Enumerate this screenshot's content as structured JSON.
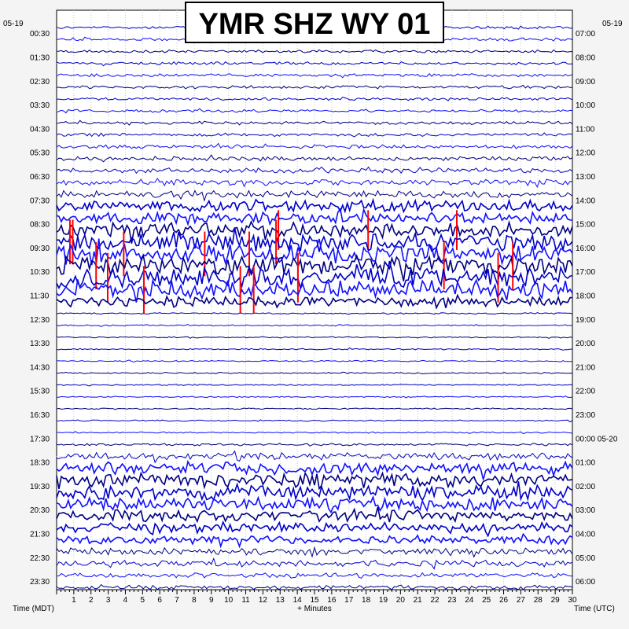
{
  "chart_data": {
    "type": "line",
    "title": "YMR SHZ WY 01",
    "date_left": "05-19",
    "date_right": "05-19",
    "xlabel": "+ Minutes",
    "left_axis_label": "Time (MDT)",
    "right_axis_label": "Time (UTC)",
    "x_ticks": [
      "1",
      "2",
      "3",
      "4",
      "5",
      "6",
      "7",
      "8",
      "9",
      "10",
      "11",
      "12",
      "13",
      "14",
      "15",
      "16",
      "17",
      "18",
      "19",
      "20",
      "21",
      "22",
      "23",
      "24",
      "25",
      "26",
      "27",
      "28",
      "29",
      "30"
    ],
    "xlim": [
      0,
      30
    ],
    "rows_per_hour": 2,
    "minutes_per_row": 30,
    "left_times": [
      "00:30",
      "01:30",
      "02:30",
      "03:30",
      "04:30",
      "05:30",
      "06:30",
      "07:30",
      "08:30",
      "09:30",
      "10:30",
      "11:30",
      "12:30",
      "13:30",
      "14:30",
      "15:30",
      "16:30",
      "17:30",
      "18:30",
      "19:30",
      "20:30",
      "21:30",
      "22:30",
      "23:30"
    ],
    "right_times": [
      "07:00",
      "08:00",
      "09:00",
      "10:00",
      "11:00",
      "12:00",
      "13:00",
      "14:00",
      "15:00",
      "16:00",
      "17:00",
      "18:00",
      "19:00",
      "20:00",
      "21:00",
      "22:00",
      "23:00",
      "00:00 05-20",
      "01:00",
      "02:00",
      "03:00",
      "04:00",
      "05:00",
      "06:00"
    ],
    "trace_colors": [
      "#0000c8",
      "#1010ff",
      "#000080"
    ],
    "clip_color": "#ff0000",
    "grid": true,
    "activity": [
      0.08,
      0.1,
      0.08,
      0.08,
      0.09,
      0.09,
      0.08,
      0.08,
      0.09,
      0.1,
      0.12,
      0.15,
      0.18,
      0.25,
      0.3,
      0.5,
      0.55,
      0.75,
      0.85,
      0.85,
      0.9,
      0.95,
      0.9,
      0.45,
      0,
      0,
      0,
      0,
      0,
      0,
      0,
      0,
      0,
      0,
      0,
      0.05,
      0.3,
      0.6,
      0.65,
      0.7,
      0.6,
      0.55,
      0.45,
      0.35,
      0.3,
      0.25,
      0.2,
      0.15
    ]
  }
}
